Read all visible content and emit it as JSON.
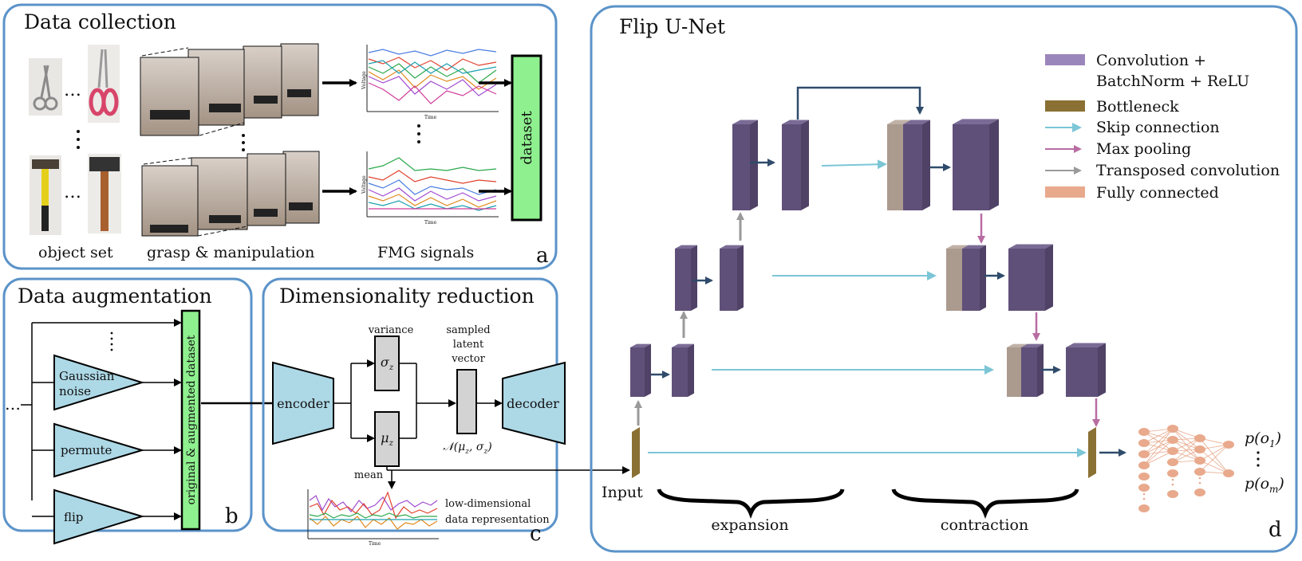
{
  "colors": {
    "panel_border": "#5b93c9",
    "green_box": "#8ef08e",
    "blue_block": "#add8e6",
    "gray_block": "#d3d3d3",
    "conv": "#6a5b86",
    "conv_front": "#5f5079",
    "conv_legend": "#9b86bb",
    "bottleneck": "#8a7033",
    "skip": "#7cc6d6",
    "maxpool": "#b86da2",
    "transposed": "#9a9a9a",
    "fully_connected": "#e8a98c",
    "arrow_dark": "#2f4b6b"
  },
  "panel_a": {
    "title": "Data collection",
    "caption_objects": "object set",
    "caption_grasp": "grasp & manipulation",
    "caption_signals": "FMG signals",
    "dataset_label": "dataset",
    "plot_ylabel": "Voltage",
    "plot_xlabel": "Time",
    "h_ellipsis": "…",
    "letter": "a"
  },
  "panel_b": {
    "title": "Data augmentation",
    "blocks": [
      "Gaussian noise",
      "permute",
      "flip"
    ],
    "left_ellipsis": "…",
    "dataset_label": "original & augmented dataset",
    "letter": "b"
  },
  "panel_c": {
    "title": "Dimensionality reduction",
    "encoder": "encoder",
    "decoder": "decoder",
    "variance": "variance",
    "sigma": "σ",
    "mu": "μ",
    "sub_z": "z",
    "mean": "mean",
    "sampled_latent_vector": [
      "sampled",
      "latent",
      "vector"
    ],
    "normal_dist": "𝒩(μ",
    "normal_dist_rest": ", σ",
    "plot_xlabel": "Time",
    "low_dim_caption": [
      "low-dimensional",
      "data representation"
    ],
    "letter": "c"
  },
  "panel_d": {
    "title": "Flip U-Net",
    "legend": [
      {
        "key": "conv",
        "label": [
          "Convolution +",
          "BatchNorm + ReLU"
        ]
      },
      {
        "key": "bottleneck",
        "label": [
          "Bottleneck"
        ]
      },
      {
        "key": "skip",
        "label": [
          "Skip connection"
        ]
      },
      {
        "key": "maxpool",
        "label": [
          "Max pooling"
        ]
      },
      {
        "key": "transposed",
        "label": [
          "Transposed convolution"
        ]
      },
      {
        "key": "fully_connected",
        "label": [
          "Fully connected"
        ]
      }
    ],
    "input_label": "Input",
    "expansion": "expansion",
    "contraction": "contraction",
    "output_top": "p(o",
    "output_top_sub": "1",
    "output_bottom": "p(o",
    "output_bottom_sub": "m",
    "letter": "d"
  }
}
